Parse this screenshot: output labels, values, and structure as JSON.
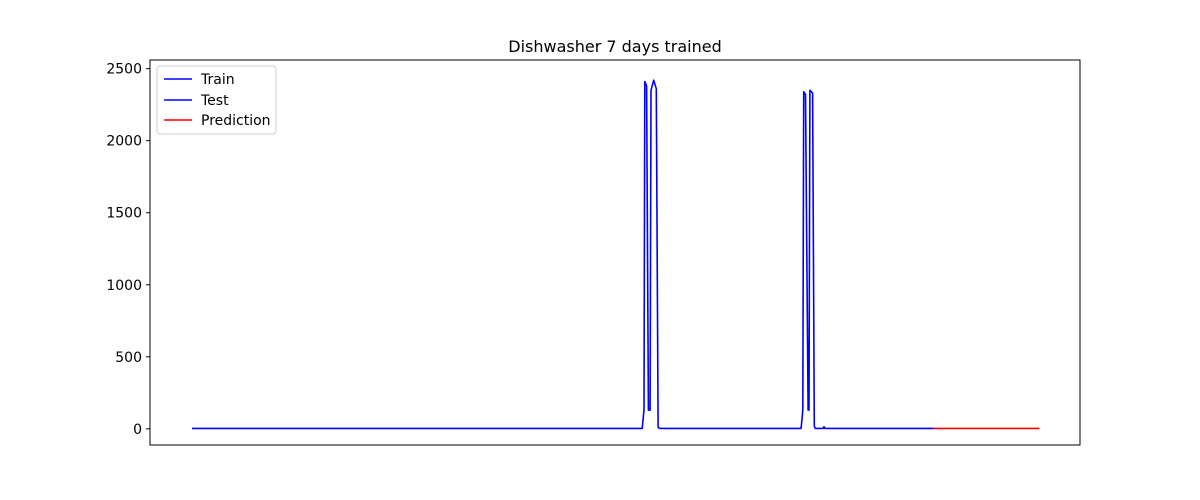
{
  "chart_data": {
    "type": "line",
    "title": "Dishwasher 7 days trained",
    "xlabel": "",
    "ylabel": "",
    "xlim": [
      0,
      100
    ],
    "ylim": [
      -112,
      2560
    ],
    "yticks": [
      0,
      500,
      1000,
      1500,
      2000,
      2500
    ],
    "grid": false,
    "legend_position": "top-left",
    "series": [
      {
        "name": "Train",
        "color": "#0000ff",
        "x": [
          0,
          40,
          51.0,
          51.2,
          51.3,
          51.5,
          51.7,
          51.9,
          52.0,
          52.3,
          52.6,
          52.8,
          53.0,
          53.1,
          53.5,
          60,
          69.0,
          69.2,
          69.3,
          69.5,
          69.8,
          69.9,
          70.0,
          70.3,
          70.5,
          70.6,
          71.0,
          71.5,
          71.6,
          71.7,
          72,
          75,
          81
        ],
        "values": [
          3,
          3,
          3,
          130,
          2410,
          2380,
          130,
          130,
          2350,
          2420,
          2360,
          10,
          3,
          3,
          3,
          3,
          3,
          130,
          2340,
          2320,
          130,
          130,
          2350,
          2330,
          20,
          3,
          3,
          3,
          15,
          3,
          3,
          3,
          3
        ]
      },
      {
        "name": "Test",
        "color": "#0000ff",
        "x": [
          81,
          84
        ],
        "values": [
          3,
          3
        ]
      },
      {
        "name": "Prediction",
        "color": "#ff0000",
        "x": [
          84,
          96
        ],
        "values": [
          3,
          3
        ]
      }
    ]
  }
}
